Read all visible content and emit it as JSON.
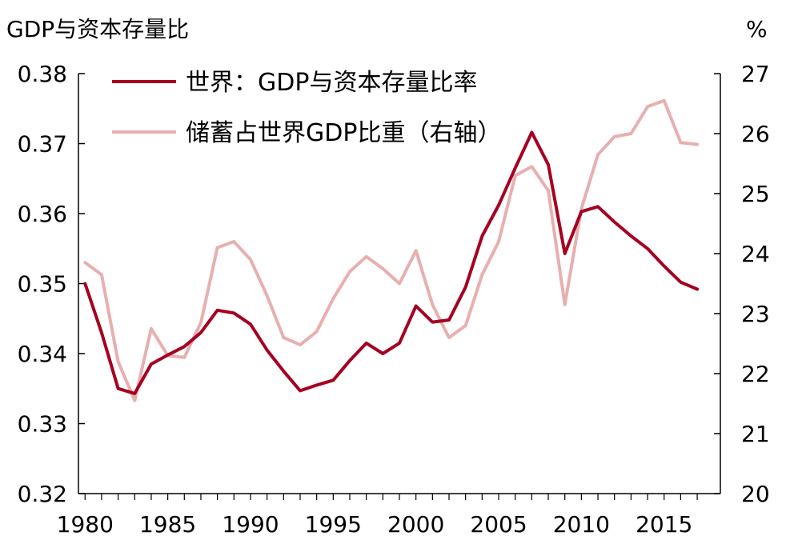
{
  "chart_data": {
    "type": "line",
    "left_axis_label": "GDP与资本存量比",
    "right_axis_label": "%",
    "x": [
      1980,
      1981,
      1982,
      1983,
      1984,
      1985,
      1986,
      1987,
      1988,
      1989,
      1990,
      1991,
      1992,
      1993,
      1994,
      1995,
      1996,
      1997,
      1998,
      1999,
      2000,
      2001,
      2002,
      2003,
      2004,
      2005,
      2006,
      2007,
      2008,
      2009,
      2010,
      2011,
      2012,
      2013,
      2014,
      2015,
      2016,
      2017
    ],
    "xlim": [
      1980,
      2017
    ],
    "x_ticks": [
      "1980",
      "1985",
      "1990",
      "1995",
      "2000",
      "2005",
      "2010",
      "2015"
    ],
    "y_left_lim": [
      0.32,
      0.38
    ],
    "y_left_ticks": [
      "0.32",
      "0.33",
      "0.34",
      "0.35",
      "0.36",
      "0.37",
      "0.38"
    ],
    "y_right_lim": [
      20,
      27
    ],
    "y_right_ticks": [
      "20",
      "21",
      "22",
      "23",
      "24",
      "25",
      "26",
      "27"
    ],
    "legend_position": "top-left",
    "grid": false,
    "series": [
      {
        "name": "世界：GDP与资本存量比率",
        "axis": "left",
        "color": "#A50021",
        "values": [
          0.35,
          0.343,
          0.335,
          0.3343,
          0.3385,
          0.3398,
          0.341,
          0.343,
          0.3462,
          0.3458,
          0.3442,
          0.3405,
          0.3375,
          0.3347,
          0.3355,
          0.3362,
          0.339,
          0.3415,
          0.34,
          0.3415,
          0.3468,
          0.3445,
          0.3448,
          0.3495,
          0.3568,
          0.3612,
          0.3665,
          0.3716,
          0.367,
          0.3543,
          0.3603,
          0.361,
          0.3588,
          0.3568,
          0.355,
          0.3525,
          0.3502,
          0.3492
        ]
      },
      {
        "name": "储蓄占世界GDP比重（右轴）",
        "axis": "right",
        "color": "#E8AFAF",
        "values": [
          23.85,
          23.65,
          22.2,
          21.55,
          22.75,
          22.3,
          22.27,
          22.85,
          24.1,
          24.2,
          23.9,
          23.3,
          22.6,
          22.48,
          22.7,
          23.25,
          23.7,
          23.95,
          23.75,
          23.5,
          24.05,
          23.15,
          22.6,
          22.8,
          23.65,
          24.2,
          25.3,
          25.45,
          25.05,
          23.15,
          24.75,
          25.65,
          25.95,
          26.0,
          26.45,
          26.55,
          25.85,
          25.82
        ]
      }
    ]
  }
}
